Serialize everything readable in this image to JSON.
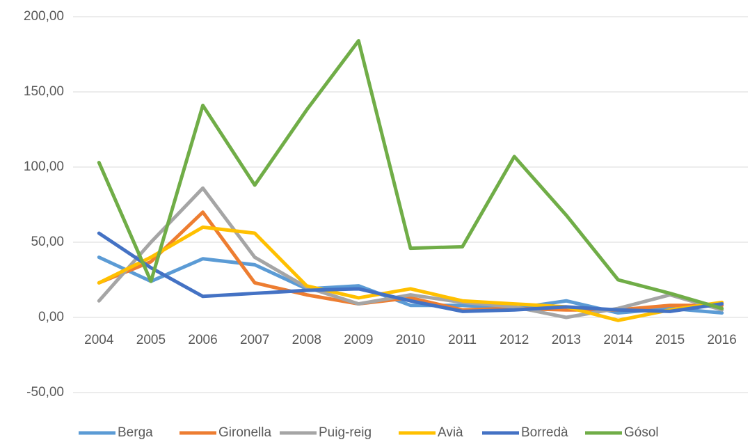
{
  "chart_data": {
    "type": "line",
    "categories": [
      "2004",
      "2005",
      "2006",
      "2007",
      "2008",
      "2009",
      "2010",
      "2011",
      "2012",
      "2013",
      "2014",
      "2015",
      "2016"
    ],
    "series": [
      {
        "name": "Berga",
        "color": "#5b9bd5",
        "values": [
          40,
          24,
          39,
          35,
          19,
          21,
          8,
          8,
          6,
          11,
          3,
          6,
          3
        ]
      },
      {
        "name": "Gironella",
        "color": "#ed7d31",
        "values": [
          23,
          37,
          70,
          23,
          15,
          9,
          13,
          5,
          6,
          5,
          5,
          8,
          8
        ]
      },
      {
        "name": "Puig-reig",
        "color": "#a5a5a5",
        "values": [
          11,
          50,
          86,
          40,
          20,
          9,
          15,
          10,
          7,
          0,
          6,
          15,
          5
        ]
      },
      {
        "name": "Avià",
        "color": "#ffc000",
        "values": [
          23,
          40,
          60,
          56,
          21,
          13,
          19,
          11,
          9,
          7,
          -2,
          5,
          10
        ]
      },
      {
        "name": "Borredà",
        "color": "#4472c4",
        "values": [
          56,
          33,
          14,
          16,
          18,
          19,
          11,
          4,
          5,
          7,
          5,
          4,
          9
        ]
      },
      {
        "name": "Gósol",
        "color": "#70ad47",
        "values": [
          103,
          24,
          141,
          88,
          138,
          184,
          46,
          47,
          107,
          68,
          25,
          16,
          6
        ]
      }
    ],
    "ylim": [
      -50,
      200
    ],
    "yticks": [
      {
        "value": -50,
        "label": "-50,00"
      },
      {
        "value": 0,
        "label": "0,00"
      },
      {
        "value": 50,
        "label": "50,00"
      },
      {
        "value": 100,
        "label": "100,00"
      },
      {
        "value": 150,
        "label": "150,00"
      },
      {
        "value": 200,
        "label": "200,00"
      }
    ],
    "grid": true,
    "legend": "bottom"
  }
}
